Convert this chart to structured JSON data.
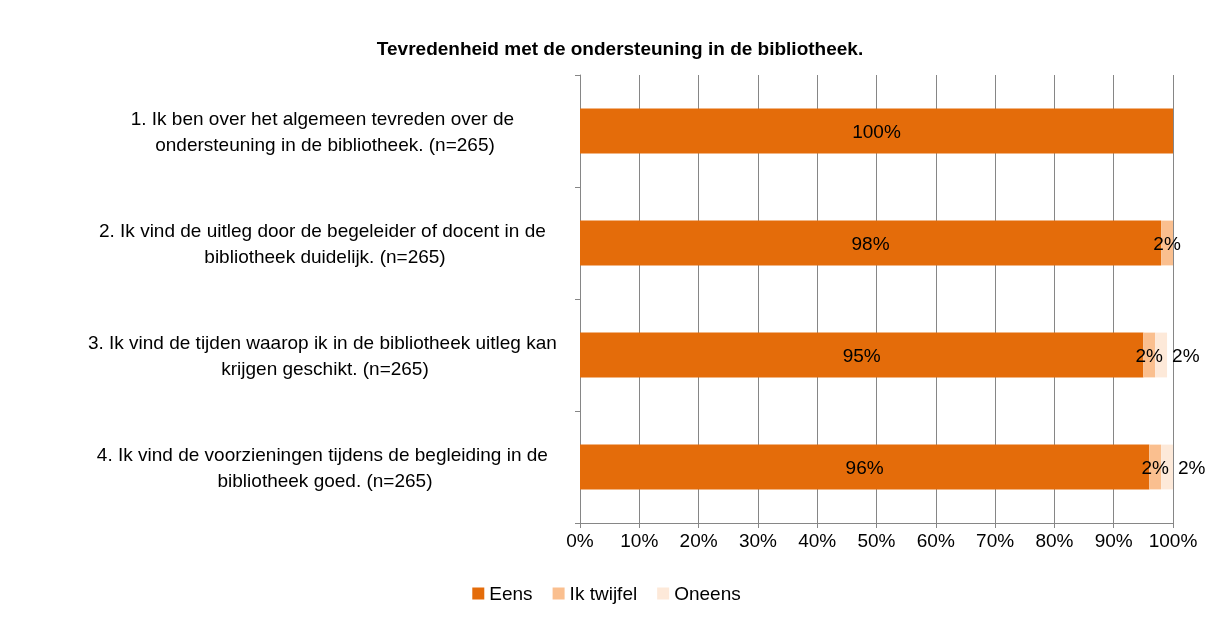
{
  "chart_data": {
    "type": "bar",
    "orientation": "horizontal",
    "stacked": true,
    "title": "Tevredenheid met de ondersteuning in de bibliotheek.",
    "categories": [
      "1. Ik ben over het algemeen tevreden over de ondersteuning in de bibliotheek. (n=265)",
      "2. Ik vind de uitleg door de begeleider of docent in de bibliotheek duidelijk. (n=265)",
      "3. Ik vind de tijden waarop ik in de bibliotheek uitleg kan krijgen geschikt. (n=265)",
      "4. Ik vind de voorzieningen tijdens de begleiding in de bibliotheek goed. (n=265)"
    ],
    "series": [
      {
        "name": "Eens",
        "color": "#e46c0a",
        "values": [
          100,
          98,
          95,
          96
        ],
        "value_labels": [
          "100%",
          "98%",
          "95%",
          "96%"
        ]
      },
      {
        "name": "Ik twijfel",
        "color": "#fabf8f",
        "values": [
          null,
          2,
          2,
          2
        ],
        "value_labels": [
          null,
          "2%",
          "2%",
          "2%"
        ]
      },
      {
        "name": "Oneens",
        "color": "#fde9d9",
        "values": [
          null,
          null,
          2,
          2
        ],
        "value_labels": [
          null,
          null,
          "2%",
          "2%"
        ]
      }
    ],
    "xlim": [
      0,
      100
    ],
    "xticks": [
      {
        "value": 0,
        "label": "0%"
      },
      {
        "value": 10,
        "label": "10%"
      },
      {
        "value": 20,
        "label": "20%"
      },
      {
        "value": 30,
        "label": "30%"
      },
      {
        "value": 40,
        "label": "40%"
      },
      {
        "value": 50,
        "label": "50%"
      },
      {
        "value": 60,
        "label": "60%"
      },
      {
        "value": 70,
        "label": "70%"
      },
      {
        "value": 80,
        "label": "80%"
      },
      {
        "value": 90,
        "label": "90%"
      },
      {
        "value": 100,
        "label": "100%"
      }
    ],
    "grid": "x",
    "legend": "bottom"
  }
}
